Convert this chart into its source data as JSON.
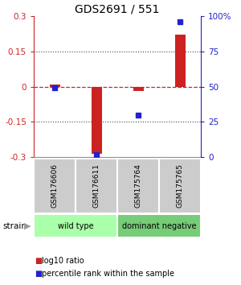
{
  "title": "GDS2691 / 551",
  "samples": [
    "GSM176606",
    "GSM176611",
    "GSM175764",
    "GSM175765"
  ],
  "log10_ratio": [
    0.01,
    -0.285,
    -0.02,
    0.22
  ],
  "percentile_rank": [
    49,
    2,
    30,
    96
  ],
  "groups": [
    {
      "label": "wild type",
      "samples": [
        0,
        1
      ],
      "color": "#aaffaa"
    },
    {
      "label": "dominant negative",
      "samples": [
        2,
        3
      ],
      "color": "#77cc77"
    }
  ],
  "ylim": [
    -0.3,
    0.3
  ],
  "yticks_left": [
    -0.3,
    -0.15,
    0,
    0.15,
    0.3
  ],
  "yticks_right": [
    0,
    25,
    50,
    75,
    100
  ],
  "bar_color": "#cc2222",
  "dot_color": "#2222cc",
  "zero_line_color": "#cc2222",
  "grid_color": "#444444",
  "bg_color": "#ffffff",
  "sample_box_color": "#cccccc",
  "left_label_color": "#cc2222",
  "right_label_color": "#2222cc",
  "strain_label": "strain",
  "legend_ratio_label": "log10 ratio",
  "legend_rank_label": "percentile rank within the sample"
}
